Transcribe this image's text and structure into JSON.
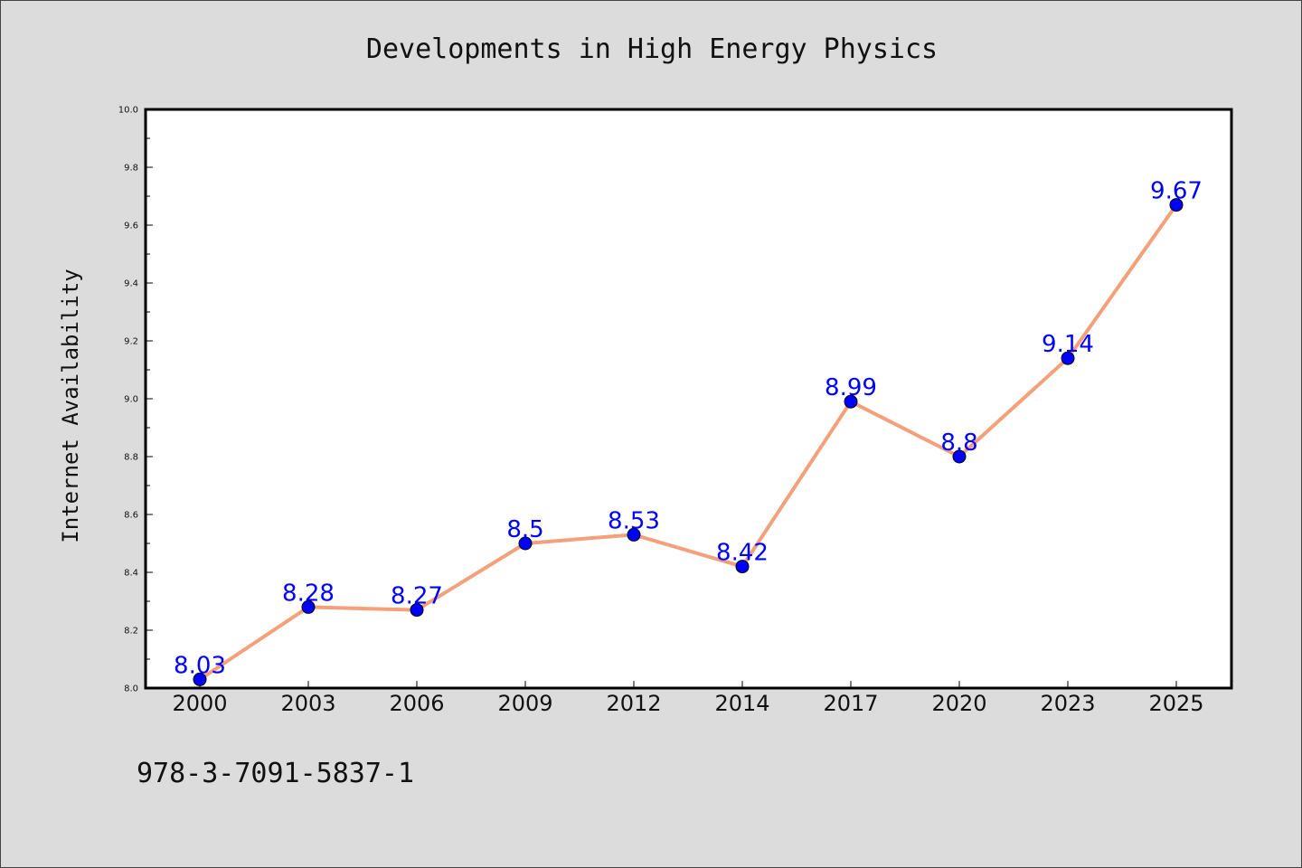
{
  "chart_data": {
    "type": "line",
    "title": "Developments in High Energy Physics",
    "xlabel": "",
    "ylabel": "Internet Availability",
    "categories": [
      "2000",
      "2003",
      "2006",
      "2009",
      "2012",
      "2014",
      "2017",
      "2020",
      "2023",
      "2025"
    ],
    "series": [
      {
        "values": [
          8.03,
          8.28,
          8.27,
          8.5,
          8.53,
          8.42,
          8.99,
          8.8,
          9.14,
          9.67
        ],
        "labels": [
          "8.03",
          "8.28",
          "8.27",
          "8.5",
          "8.53",
          "8.42",
          "8.99",
          "8.8",
          "9.14",
          "9.67"
        ],
        "line_color": "#f4a07a",
        "marker_color": "#0000ff"
      }
    ],
    "ylim": [
      8.0,
      10.0
    ],
    "yticks": [
      "8.0",
      "8.2",
      "8.4",
      "8.6",
      "8.8",
      "9.0",
      "9.2",
      "9.4",
      "9.6",
      "9.8",
      "10.0"
    ],
    "grid": false,
    "legend": "none"
  },
  "footer": {
    "isbn": "978-3-7091-5837-1"
  },
  "colors": {
    "background": "#dcdcdc",
    "plot_area": "#ffffff",
    "line": "#f4a07a",
    "marker": "#0000ff",
    "data_label": "#0000ff"
  }
}
